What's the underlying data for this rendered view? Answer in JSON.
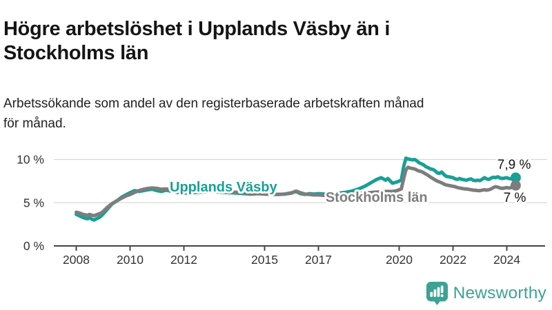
{
  "header": {
    "title": "Högre arbetslöshet i Upplands Väsby än i\nStockholms län",
    "subtitle": "Arbetssökande som andel av den registerbaserade arbetskraften månad\nför månad."
  },
  "footer": {
    "brand": "Newsworthy",
    "logo_icon": "newsworthy-speech-bubble-bar-chart-icon"
  },
  "colors": {
    "title_text": "#151515",
    "body_text": "#212121",
    "teal_line": "#18a095",
    "gray_line": "#7d7d7d",
    "brand_teal": "#3da294",
    "axis": "#444444",
    "axis_text": "#333333",
    "grid": "#d9d9d9",
    "value_label": "#111111",
    "background": "#ffffff"
  },
  "chart_data": {
    "type": "line",
    "title": "Högre arbetslöshet i Upplands Väsby än i Stockholms län",
    "subtitle": "Arbetssökande som andel av den registerbaserade arbetskraften månad för månad.",
    "x_unit": "year-decimal (monthly observations)",
    "xlim": [
      2007.7,
      2025.2
    ],
    "ylim": [
      0,
      11.5
    ],
    "grid": "horizontal",
    "legend_position": "inline-labels-on-lines",
    "y_ticks": [
      {
        "value": 0,
        "label": "0 %"
      },
      {
        "value": 5,
        "label": "5 %"
      },
      {
        "value": 10,
        "label": "10 %"
      }
    ],
    "x_ticks": [
      {
        "value": 2008,
        "label": "2008"
      },
      {
        "value": 2010,
        "label": "2010"
      },
      {
        "value": 2012,
        "label": "2012"
      },
      {
        "value": 2015,
        "label": "2015"
      },
      {
        "value": 2017,
        "label": "2017"
      },
      {
        "value": 2020,
        "label": "2020"
      },
      {
        "value": 2022,
        "label": "2022"
      },
      {
        "value": 2024,
        "label": "2024"
      }
    ],
    "series": [
      {
        "name": "Upplands Väsby",
        "color": "#18a095",
        "end_value": 7.9,
        "end_label": "7,9 %",
        "label_pos": {
          "x": 2013.47,
          "y": 6.3
        },
        "points": [
          [
            2008.0,
            3.65
          ],
          [
            2008.08,
            3.55
          ],
          [
            2008.17,
            3.4
          ],
          [
            2008.25,
            3.3
          ],
          [
            2008.33,
            3.2
          ],
          [
            2008.42,
            3.15
          ],
          [
            2008.5,
            3.25
          ],
          [
            2008.58,
            3.1
          ],
          [
            2008.67,
            3.0
          ],
          [
            2008.75,
            3.15
          ],
          [
            2008.83,
            3.25
          ],
          [
            2008.92,
            3.45
          ],
          [
            2009.0,
            3.7
          ],
          [
            2009.17,
            4.3
          ],
          [
            2009.33,
            4.85
          ],
          [
            2009.5,
            5.2
          ],
          [
            2009.67,
            5.6
          ],
          [
            2009.83,
            5.9
          ],
          [
            2010.0,
            6.15
          ],
          [
            2010.17,
            6.4
          ],
          [
            2010.33,
            6.3
          ],
          [
            2010.5,
            6.4
          ],
          [
            2010.67,
            6.5
          ],
          [
            2010.83,
            6.55
          ],
          [
            2011.0,
            6.4
          ],
          [
            2011.17,
            6.3
          ],
          [
            2011.33,
            6.45
          ],
          [
            2011.5,
            6.35
          ],
          [
            2011.67,
            6.25
          ],
          [
            2011.83,
            6.15
          ],
          [
            2012.0,
            6.1
          ],
          [
            2012.25,
            6.15
          ],
          [
            2012.5,
            6.2
          ],
          [
            2012.75,
            6.25
          ],
          [
            2013.0,
            6.3
          ],
          [
            2013.25,
            6.25
          ],
          [
            2013.5,
            6.2
          ],
          [
            2013.75,
            6.15
          ],
          [
            2014.0,
            6.1
          ],
          [
            2014.25,
            6.05
          ],
          [
            2014.5,
            6.0
          ],
          [
            2014.75,
            6.05
          ],
          [
            2015.0,
            6.1
          ],
          [
            2015.25,
            6.05
          ],
          [
            2015.5,
            5.95
          ],
          [
            2015.75,
            6.0
          ],
          [
            2016.0,
            6.15
          ],
          [
            2016.17,
            6.3
          ],
          [
            2016.33,
            6.05
          ],
          [
            2016.5,
            5.95
          ],
          [
            2016.67,
            6.05
          ],
          [
            2016.83,
            6.0
          ],
          [
            2017.0,
            6.05
          ],
          [
            2017.25,
            6.0
          ],
          [
            2017.5,
            6.05
          ],
          [
            2017.75,
            6.1
          ],
          [
            2018.0,
            6.2
          ],
          [
            2018.25,
            6.35
          ],
          [
            2018.5,
            6.6
          ],
          [
            2018.75,
            6.95
          ],
          [
            2019.0,
            7.4
          ],
          [
            2019.17,
            7.7
          ],
          [
            2019.33,
            7.9
          ],
          [
            2019.5,
            7.6
          ],
          [
            2019.58,
            7.8
          ],
          [
            2019.75,
            7.25
          ],
          [
            2019.92,
            7.4
          ],
          [
            2020.08,
            7.6
          ],
          [
            2020.17,
            9.2
          ],
          [
            2020.25,
            10.15
          ],
          [
            2020.33,
            10.05
          ],
          [
            2020.42,
            10.0
          ],
          [
            2020.5,
            9.95
          ],
          [
            2020.58,
            10.0
          ],
          [
            2020.67,
            9.8
          ],
          [
            2020.75,
            9.6
          ],
          [
            2020.83,
            9.5
          ],
          [
            2020.92,
            9.35
          ],
          [
            2021.0,
            9.15
          ],
          [
            2021.08,
            9.05
          ],
          [
            2021.17,
            8.9
          ],
          [
            2021.25,
            8.85
          ],
          [
            2021.33,
            8.7
          ],
          [
            2021.42,
            8.45
          ],
          [
            2021.5,
            8.4
          ],
          [
            2021.58,
            8.55
          ],
          [
            2021.67,
            8.25
          ],
          [
            2021.75,
            8.05
          ],
          [
            2021.83,
            8.0
          ],
          [
            2021.92,
            7.95
          ],
          [
            2022.0,
            7.9
          ],
          [
            2022.08,
            7.75
          ],
          [
            2022.17,
            7.7
          ],
          [
            2022.25,
            7.8
          ],
          [
            2022.33,
            7.7
          ],
          [
            2022.42,
            7.65
          ],
          [
            2022.5,
            7.6
          ],
          [
            2022.58,
            7.7
          ],
          [
            2022.67,
            7.75
          ],
          [
            2022.75,
            7.6
          ],
          [
            2022.83,
            7.55
          ],
          [
            2022.92,
            7.6
          ],
          [
            2023.0,
            7.55
          ],
          [
            2023.08,
            7.7
          ],
          [
            2023.17,
            7.9
          ],
          [
            2023.25,
            7.75
          ],
          [
            2023.33,
            7.7
          ],
          [
            2023.42,
            7.85
          ],
          [
            2023.5,
            7.95
          ],
          [
            2023.58,
            7.9
          ],
          [
            2023.67,
            8.0
          ],
          [
            2023.75,
            7.85
          ],
          [
            2023.83,
            7.8
          ],
          [
            2023.92,
            7.85
          ],
          [
            2024.0,
            7.9
          ],
          [
            2024.08,
            7.8
          ],
          [
            2024.17,
            7.75
          ],
          [
            2024.25,
            7.85
          ],
          [
            2024.33,
            7.9
          ]
        ]
      },
      {
        "name": "Stockholms län",
        "color": "#7d7d7d",
        "end_value": 7.0,
        "end_label": "7 %",
        "label_pos": {
          "x": 2019.16,
          "y": 5.1
        },
        "points": [
          [
            2008.0,
            3.9
          ],
          [
            2008.08,
            3.85
          ],
          [
            2008.17,
            3.75
          ],
          [
            2008.25,
            3.65
          ],
          [
            2008.33,
            3.6
          ],
          [
            2008.42,
            3.55
          ],
          [
            2008.5,
            3.65
          ],
          [
            2008.58,
            3.55
          ],
          [
            2008.67,
            3.5
          ],
          [
            2008.75,
            3.6
          ],
          [
            2008.83,
            3.7
          ],
          [
            2008.92,
            3.8
          ],
          [
            2009.0,
            4.0
          ],
          [
            2009.17,
            4.5
          ],
          [
            2009.33,
            4.9
          ],
          [
            2009.5,
            5.2
          ],
          [
            2009.67,
            5.5
          ],
          [
            2009.83,
            5.75
          ],
          [
            2010.0,
            5.95
          ],
          [
            2010.17,
            6.2
          ],
          [
            2010.33,
            6.4
          ],
          [
            2010.5,
            6.55
          ],
          [
            2010.67,
            6.65
          ],
          [
            2010.83,
            6.7
          ],
          [
            2011.0,
            6.65
          ],
          [
            2011.17,
            6.55
          ],
          [
            2011.33,
            6.6
          ],
          [
            2011.5,
            6.5
          ],
          [
            2011.67,
            6.4
          ],
          [
            2011.83,
            6.35
          ],
          [
            2012.0,
            6.3
          ],
          [
            2012.25,
            6.3
          ],
          [
            2012.5,
            6.35
          ],
          [
            2012.75,
            6.35
          ],
          [
            2013.0,
            6.4
          ],
          [
            2013.25,
            6.35
          ],
          [
            2013.5,
            6.3
          ],
          [
            2013.75,
            6.25
          ],
          [
            2014.0,
            6.2
          ],
          [
            2014.25,
            6.15
          ],
          [
            2014.5,
            6.1
          ],
          [
            2014.75,
            6.05
          ],
          [
            2015.0,
            6.0
          ],
          [
            2015.25,
            5.95
          ],
          [
            2015.5,
            5.95
          ],
          [
            2015.75,
            6.0
          ],
          [
            2016.0,
            6.1
          ],
          [
            2016.17,
            6.35
          ],
          [
            2016.33,
            6.15
          ],
          [
            2016.5,
            6.0
          ],
          [
            2016.67,
            5.95
          ],
          [
            2016.83,
            5.9
          ],
          [
            2017.0,
            5.9
          ],
          [
            2017.25,
            5.85
          ],
          [
            2017.5,
            5.85
          ],
          [
            2017.75,
            5.9
          ],
          [
            2018.0,
            5.95
          ],
          [
            2018.25,
            6.0
          ],
          [
            2018.5,
            6.05
          ],
          [
            2018.75,
            6.1
          ],
          [
            2019.0,
            6.2
          ],
          [
            2019.25,
            6.25
          ],
          [
            2019.5,
            6.3
          ],
          [
            2019.75,
            6.3
          ],
          [
            2019.92,
            6.4
          ],
          [
            2020.08,
            6.6
          ],
          [
            2020.17,
            7.8
          ],
          [
            2020.25,
            8.8
          ],
          [
            2020.33,
            9.1
          ],
          [
            2020.42,
            9.0
          ],
          [
            2020.5,
            8.95
          ],
          [
            2020.58,
            8.9
          ],
          [
            2020.67,
            8.75
          ],
          [
            2020.75,
            8.65
          ],
          [
            2020.83,
            8.6
          ],
          [
            2020.92,
            8.45
          ],
          [
            2021.0,
            8.3
          ],
          [
            2021.08,
            8.15
          ],
          [
            2021.17,
            7.95
          ],
          [
            2021.25,
            7.8
          ],
          [
            2021.33,
            7.65
          ],
          [
            2021.42,
            7.5
          ],
          [
            2021.5,
            7.4
          ],
          [
            2021.58,
            7.3
          ],
          [
            2021.67,
            7.15
          ],
          [
            2021.75,
            7.05
          ],
          [
            2021.83,
            7.0
          ],
          [
            2021.92,
            6.95
          ],
          [
            2022.0,
            6.9
          ],
          [
            2022.08,
            6.85
          ],
          [
            2022.17,
            6.75
          ],
          [
            2022.25,
            6.7
          ],
          [
            2022.33,
            6.65
          ],
          [
            2022.42,
            6.6
          ],
          [
            2022.5,
            6.6
          ],
          [
            2022.58,
            6.55
          ],
          [
            2022.67,
            6.5
          ],
          [
            2022.75,
            6.45
          ],
          [
            2022.83,
            6.45
          ],
          [
            2022.92,
            6.4
          ],
          [
            2023.0,
            6.4
          ],
          [
            2023.08,
            6.45
          ],
          [
            2023.17,
            6.5
          ],
          [
            2023.25,
            6.45
          ],
          [
            2023.33,
            6.5
          ],
          [
            2023.42,
            6.6
          ],
          [
            2023.5,
            6.75
          ],
          [
            2023.58,
            6.85
          ],
          [
            2023.67,
            6.8
          ],
          [
            2023.75,
            6.7
          ],
          [
            2023.83,
            6.65
          ],
          [
            2023.92,
            6.7
          ],
          [
            2024.0,
            6.75
          ],
          [
            2024.08,
            6.7
          ],
          [
            2024.17,
            6.75
          ],
          [
            2024.25,
            6.85
          ],
          [
            2024.33,
            7.0
          ]
        ]
      }
    ]
  }
}
